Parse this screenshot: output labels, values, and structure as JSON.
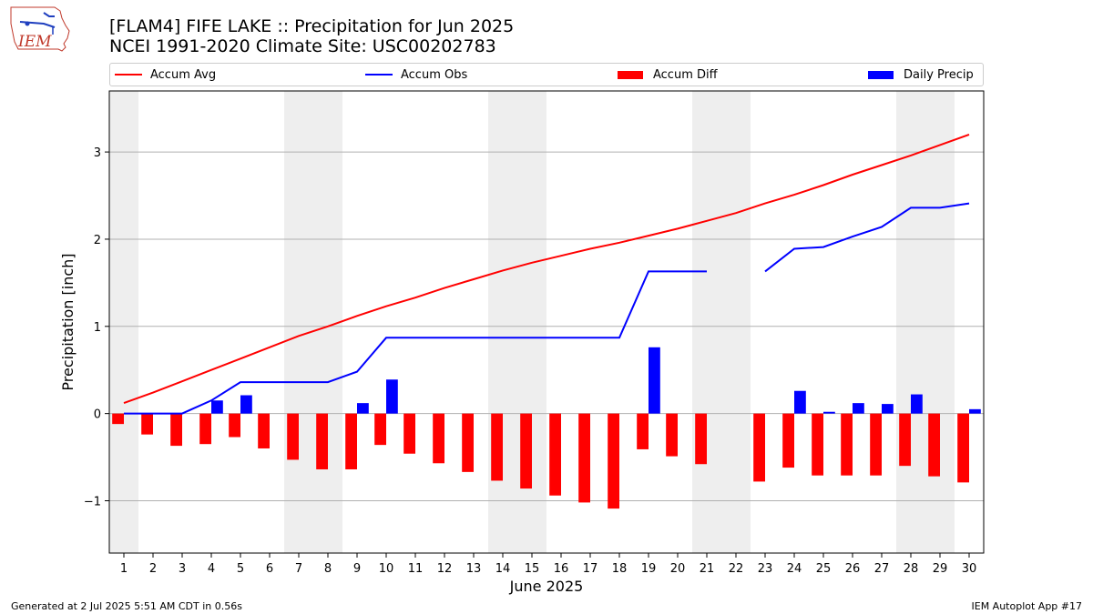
{
  "header": {
    "title_line1": "[FLAM4] FIFE LAKE :: Precipitation for Jun 2025",
    "title_line2": "NCEI 1991-2020 Climate Site: USC00202783",
    "logo_text": "IEM"
  },
  "legend": {
    "accum_avg": "Accum Avg",
    "accum_obs": "Accum Obs",
    "accum_diff": "Accum Diff",
    "daily_precip": "Daily Precip"
  },
  "colors": {
    "accum_avg": "#ff0000",
    "accum_obs": "#0000ff",
    "accum_diff": "#ff0000",
    "daily_precip": "#0000ff",
    "weekend_band": "#eeeeee",
    "grid": "#b0b0b0"
  },
  "footer": {
    "left": "Generated at 2 Jul 2025 5:51 AM CDT in 0.56s",
    "right": "IEM Autoplot App #17"
  },
  "chart_data": {
    "type": "bar",
    "xlabel": "June 2025",
    "ylabel": "Precipitation [inch]",
    "xlim": [
      0.5,
      30.5
    ],
    "ylim": [
      -1.6,
      3.7
    ],
    "yticks": [
      -1,
      0,
      1,
      2,
      3
    ],
    "ytick_labels": [
      "−1",
      "0",
      "1",
      "2",
      "3"
    ],
    "grid": "horizontal",
    "legend_position": "top",
    "days": [
      1,
      2,
      3,
      4,
      5,
      6,
      7,
      8,
      9,
      10,
      11,
      12,
      13,
      14,
      15,
      16,
      17,
      18,
      19,
      20,
      21,
      22,
      23,
      24,
      25,
      26,
      27,
      28,
      29,
      30
    ],
    "shaded_days": [
      1,
      7,
      8,
      14,
      15,
      21,
      22,
      28,
      29
    ],
    "series": [
      {
        "name": "Accum Avg",
        "kind": "line",
        "values": [
          0.12,
          0.24,
          0.37,
          0.5,
          0.63,
          0.76,
          0.89,
          1.0,
          1.12,
          1.23,
          1.33,
          1.44,
          1.54,
          1.64,
          1.73,
          1.81,
          1.89,
          1.96,
          2.04,
          2.12,
          2.21,
          2.3,
          2.41,
          2.51,
          2.62,
          2.74,
          2.85,
          2.96,
          3.08,
          3.2
        ]
      },
      {
        "name": "Accum Obs",
        "kind": "line",
        "values": [
          0,
          0,
          0,
          0.15,
          0.36,
          0.36,
          0.36,
          0.36,
          0.48,
          0.87,
          0.87,
          0.87,
          0.87,
          0.87,
          0.87,
          0.87,
          0.87,
          0.87,
          1.63,
          1.63,
          1.63,
          null,
          1.63,
          1.89,
          1.91,
          2.03,
          2.14,
          2.36,
          2.36,
          2.41
        ]
      },
      {
        "name": "Accum Diff",
        "kind": "bar",
        "values": [
          -0.12,
          -0.24,
          -0.37,
          -0.35,
          -0.27,
          -0.4,
          -0.53,
          -0.64,
          -0.64,
          -0.36,
          -0.46,
          -0.57,
          -0.67,
          -0.77,
          -0.86,
          -0.94,
          -1.02,
          -1.09,
          -0.41,
          -0.49,
          -0.58,
          null,
          -0.78,
          -0.62,
          -0.71,
          -0.71,
          -0.71,
          -0.6,
          -0.72,
          -0.79
        ]
      },
      {
        "name": "Daily Precip",
        "kind": "bar",
        "values": [
          0,
          0,
          0,
          0.15,
          0.21,
          0,
          0,
          0,
          0.12,
          0.39,
          0,
          0,
          0,
          0,
          0,
          0,
          0,
          0,
          0.76,
          0,
          0,
          null,
          0,
          0.26,
          0.02,
          0.12,
          0.11,
          0.22,
          0,
          0.05
        ]
      }
    ]
  }
}
